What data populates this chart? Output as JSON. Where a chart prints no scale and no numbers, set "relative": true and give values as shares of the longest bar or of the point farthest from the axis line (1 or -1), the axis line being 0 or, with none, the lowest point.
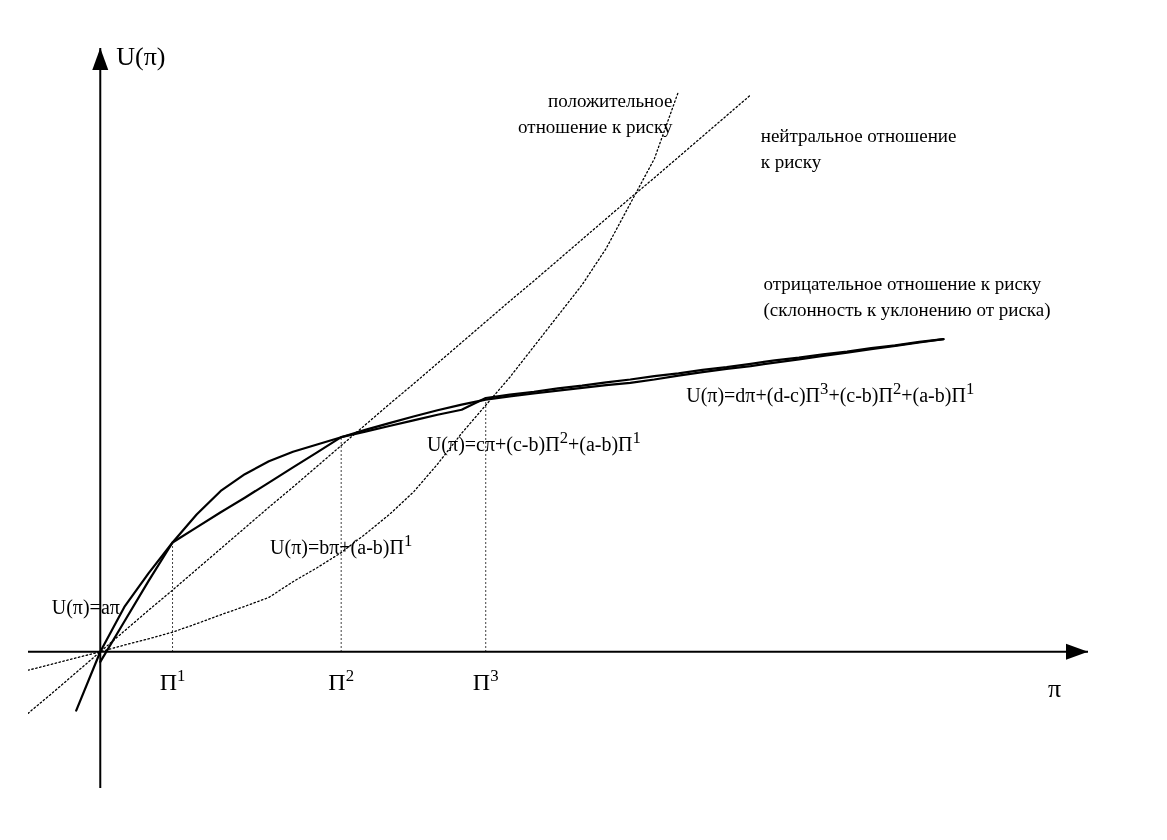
{
  "chart_data": {
    "type": "line",
    "relative": true,
    "xlabel": "π",
    "ylabel": "U(π)",
    "categories": [
      null,
      null,
      null,
      null,
      null,
      null,
      "Π$^{1}$",
      null,
      null,
      null,
      null,
      null,
      null,
      "Π$^{2}$",
      null,
      null,
      null,
      null,
      null,
      "Π$^{3}$",
      null,
      null,
      null,
      null,
      null,
      null,
      null,
      null,
      null,
      null,
      null,
      null,
      null,
      null,
      null,
      null,
      null,
      null,
      null,
      null,
      null,
      null,
      null,
      null,
      null
    ],
    "ref_lines": [
      {
        "axis": "x",
        "value": "Π$^{1}$",
        "line_style": "dotted"
      },
      {
        "axis": "x",
        "value": "Π$^{2}$",
        "line_style": "dotted"
      },
      {
        "axis": "x",
        "value": "Π$^{3}$",
        "line_style": "dotted"
      }
    ],
    "series": [
      {
        "name": "отрицательное отношение к риску (склонность к уклонению от риска)",
        "color": "#000000",
        "line_style": "solid",
        "values": [
          null,
          null,
          -0.105,
          0,
          0.08,
          0.14,
          0.195,
          0.245,
          0.287,
          0.317,
          0.34,
          0.357,
          0.37,
          0.383,
          0.396,
          0.408,
          0.42,
          0.431,
          0.441,
          0.45,
          0.456,
          0.461,
          0.466,
          0.471,
          0.476,
          0.48,
          0.486,
          0.493,
          0.499,
          0.505,
          0.51,
          0.516,
          0.522,
          0.528,
          0.534,
          0.54,
          0.546,
          0.552,
          0.558,
          null,
          null,
          null,
          null,
          null,
          null
        ]
      },
      {
        "color": "#000000",
        "line_style": "solid",
        "values": [
          null,
          null,
          null,
          -0.018,
          0.054,
          0.126,
          0.195,
          0.222,
          0.249,
          0.275,
          0.302,
          0.329,
          0.356,
          0.383,
          0.393,
          0.403,
          0.413,
          0.423,
          0.432,
          0.453,
          0.459,
          0.464,
          0.47,
          0.475,
          0.481,
          0.486,
          0.492,
          0.497,
          0.503,
          0.508,
          0.514,
          0.52,
          0.525,
          0.531,
          0.536,
          0.542,
          0.547,
          0.553,
          0.558,
          null,
          null,
          null,
          null,
          null,
          null
        ]
      },
      {
        "name": "нейтральное отношение к риску",
        "color": "#000000",
        "line_style": "dotted",
        "values": [
          -0.11,
          -0.074,
          -0.037,
          0,
          0.037,
          0.074,
          0.11,
          0.147,
          0.184,
          0.221,
          0.258,
          0.294,
          0.331,
          0.368,
          0.405,
          0.442,
          0.478,
          0.515,
          0.552,
          0.589,
          0.626,
          0.662,
          0.699,
          0.736,
          0.773,
          0.81,
          0.846,
          0.883,
          0.92,
          0.957,
          0.994,
          null,
          null,
          null,
          null,
          null,
          null,
          null,
          null,
          null,
          null,
          null,
          null,
          null,
          null
        ]
      },
      {
        "name": "положительное отношение к риску",
        "color": "#000000",
        "line_style": "dotted",
        "values": [
          -0.033,
          -0.022,
          -0.011,
          0,
          0.012,
          0.023,
          0.035,
          0.05,
          0.066,
          0.081,
          0.097,
          0.125,
          0.15,
          0.177,
          0.21,
          0.245,
          0.285,
          0.335,
          0.39,
          0.44,
          0.49,
          0.545,
          0.6,
          0.655,
          0.72,
          0.8,
          0.88,
          1,
          null,
          null,
          null,
          null,
          null,
          null,
          null,
          null,
          null,
          null,
          null,
          null,
          null,
          null,
          null,
          null,
          null
        ]
      }
    ],
    "annotations": [
      "U(π)=aπ",
      "U(π)=bπ+(a-b)Π$^{1}$",
      "U(π)=cπ+(c-b)Π$^{2}$+(a-b)Π$^{1}$",
      "U(π)=dπ+(d-c)Π$^{3}$+(c-b)Π$^{2}$+(a-b)Π$^{1}$"
    ]
  }
}
